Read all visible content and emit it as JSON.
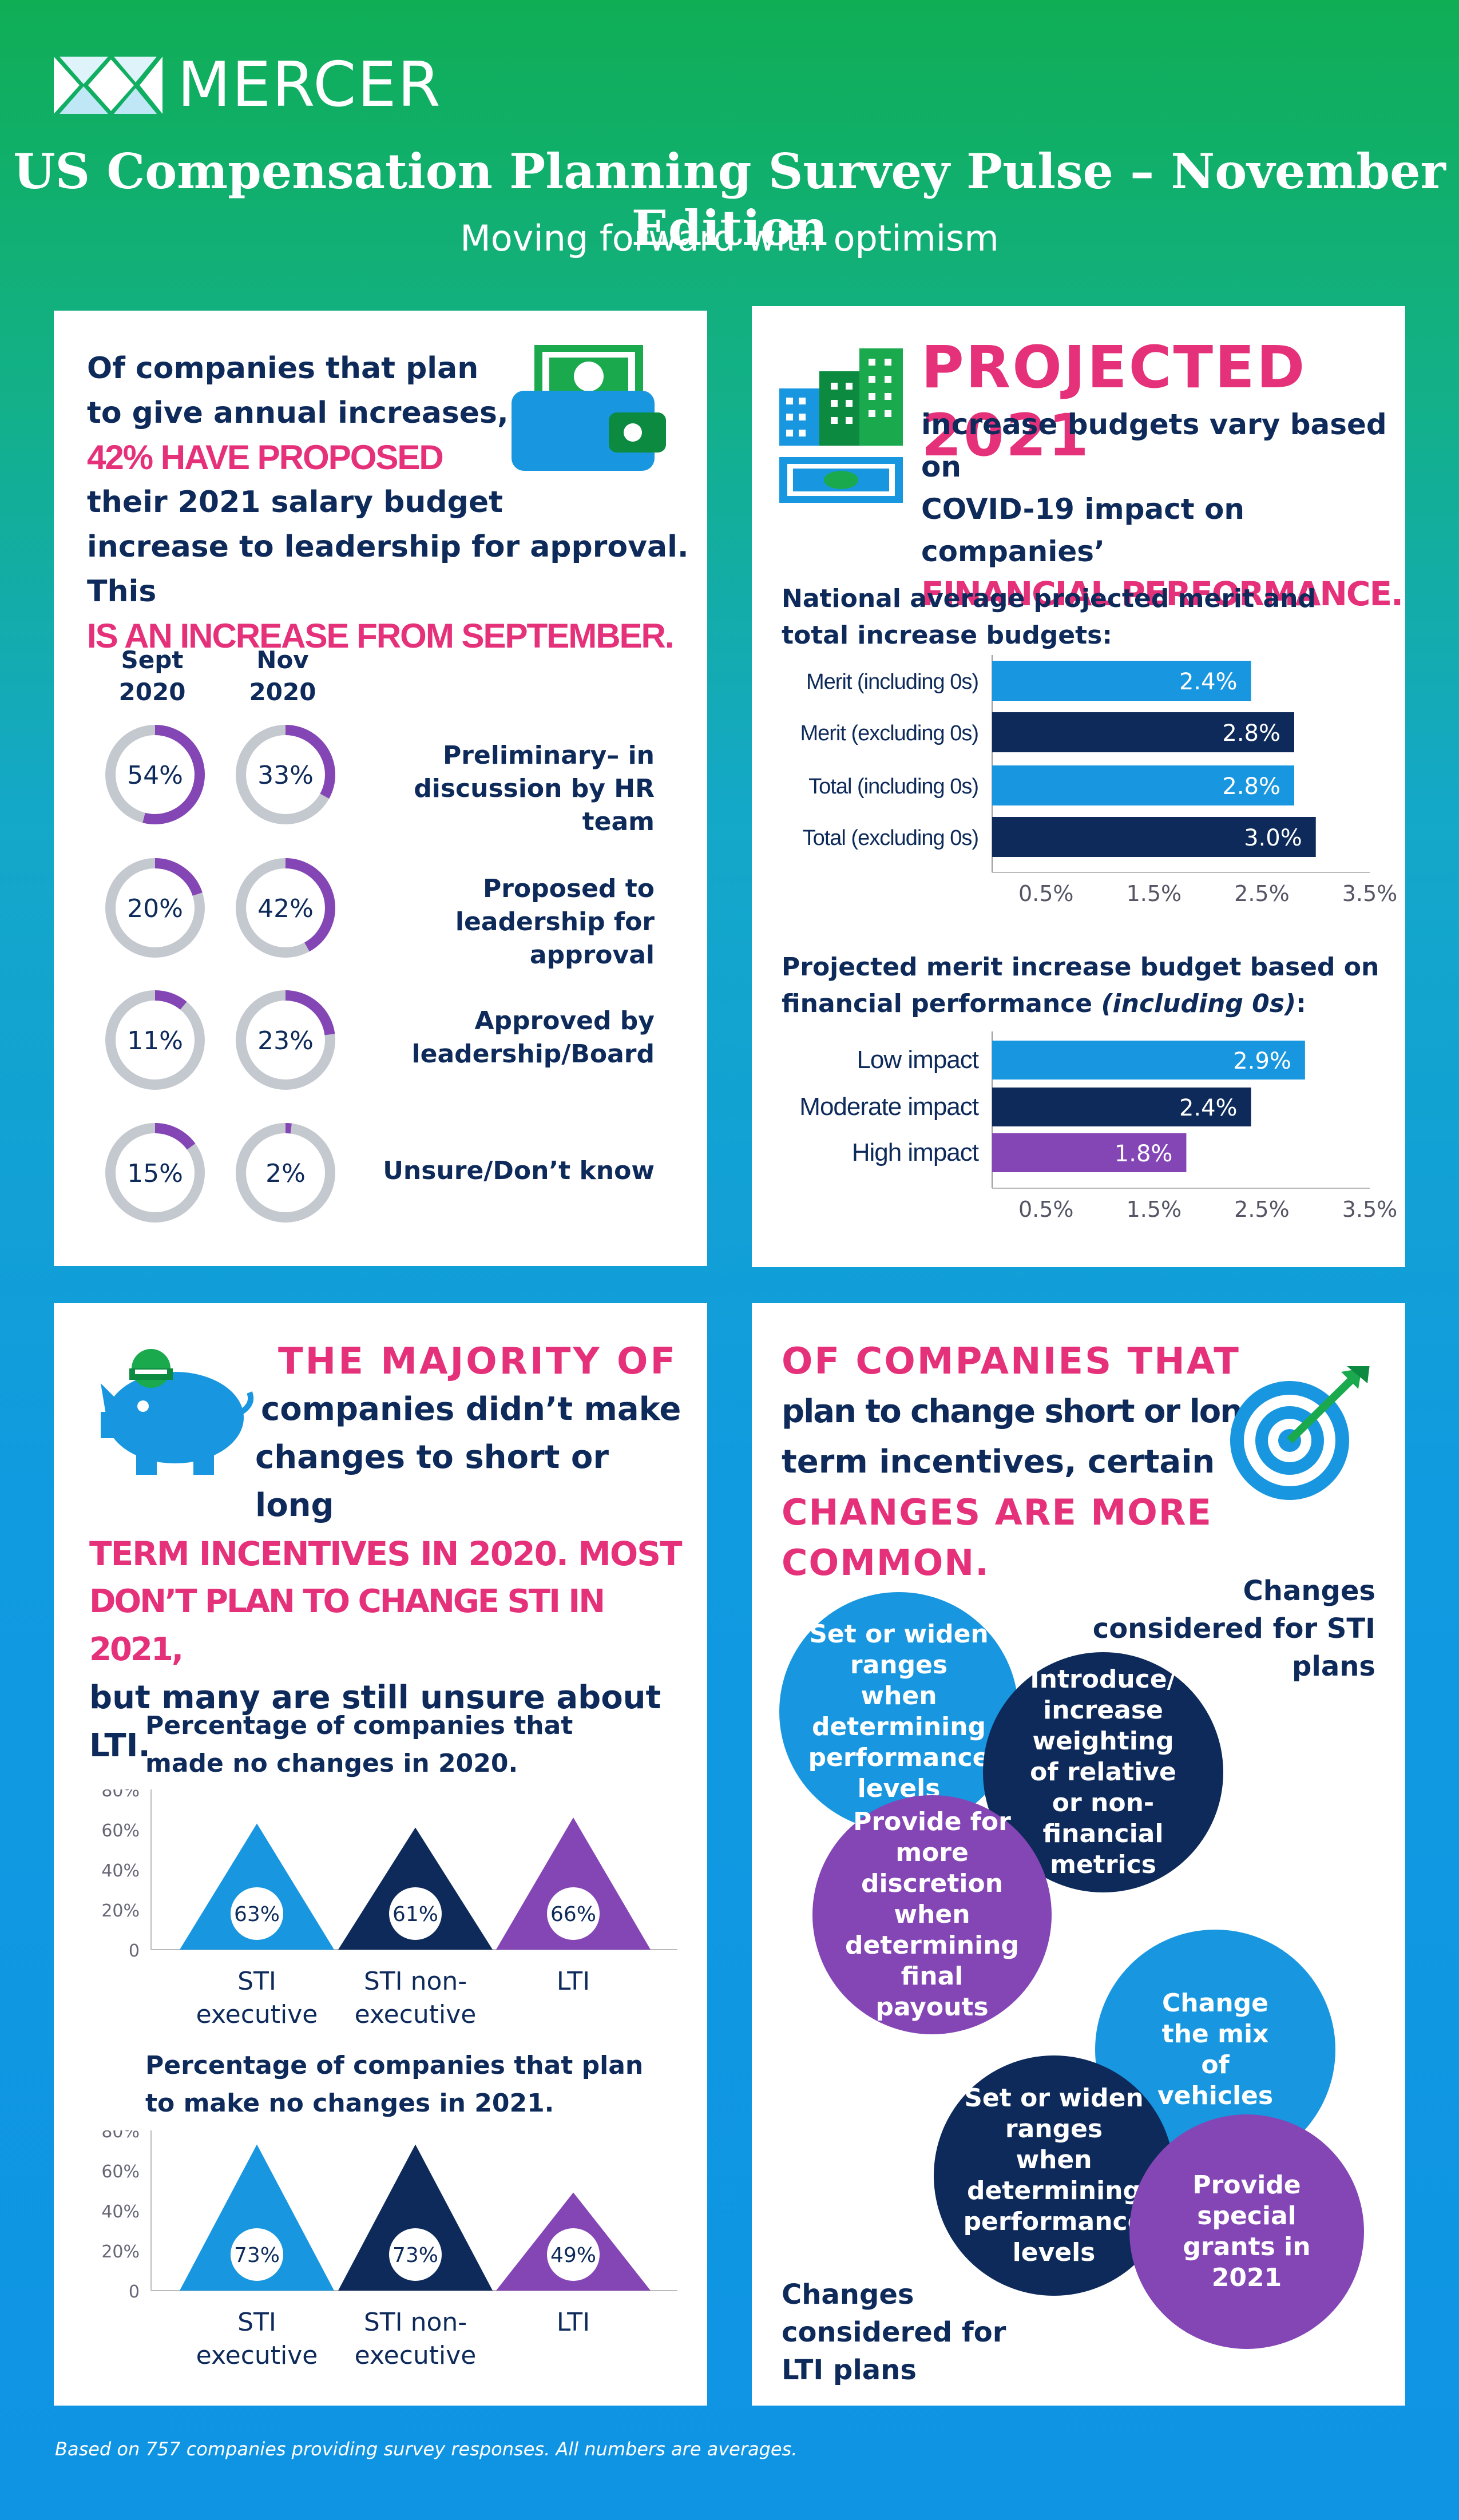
{
  "brand": "MERCER",
  "title": "US Compensation Planning Survey Pulse – November Edition",
  "subtitle": "Moving forward with optimism",
  "colors": {
    "pink": "#e5317a",
    "navy": "#0d2a5a",
    "blue": "#1897e0",
    "purple": "#8445b5",
    "gray": "#c4c8cf",
    "green": "#1aa94d"
  },
  "panel1": {
    "line1": "Of companies that plan",
    "line2": "to give annual increases,",
    "line3": "42% HAVE PROPOSED",
    "line4": "their 2021 salary budget",
    "line5": "increase to leadership for approval. This",
    "line6": "IS AN INCREASE FROM SEPTEMBER.",
    "col_sept": "Sept 2020",
    "col_nov": "Nov 2020"
  },
  "panel2": {
    "title": "PROJECTED 2021",
    "line1": "increase budgets vary based on",
    "line2": "COVID-19 impact on companies’",
    "line3": "FINANCIAL PERFORMANCE.",
    "chart1_title": "National average projected merit and total increase budgets:",
    "chart2_title_a": "Projected merit increase budget based on financial performance",
    "chart2_title_b": "(including 0s)",
    "chart2_title_c": ":"
  },
  "panel3": {
    "h1": "THE MAJORITY OF",
    "h2": "companies didn’t make",
    "h3": "changes to short or long",
    "h4": "TERM INCENTIVES IN 2020. MOST",
    "h5": "DON’T PLAN TO CHANGE STI IN 2021,",
    "h6": "but many are still unsure about LTI.",
    "chart1_title": "Percentage of companies that made no changes in 2020.",
    "chart2_title": "Percentage of companies that plan to make no changes in 2021."
  },
  "panel4": {
    "h1": "OF COMPANIES THAT",
    "h2": "plan to change short or long",
    "h3": "term incentives, certain",
    "h4": "CHANGES ARE MORE COMMON.",
    "sti_label": "Changes considered for STI plans",
    "lti_label": "Changes considered for LTI plans",
    "sti_bubbles": [
      "Set or widen ranges when determining performance levels",
      "Introduce/ increase weighting of relative or non-financial metrics",
      "Provide for more discretion when determining final payouts"
    ],
    "lti_bubbles": [
      "Change the mix of vehicles",
      "Set or widen ranges when determining performance levels",
      "Provide special grants in 2021"
    ]
  },
  "footnote": "Based on 757 companies providing survey responses. All numbers are averages.",
  "chart_data": [
    {
      "type": "donut",
      "title": "",
      "categories": [
        "Preliminary– in discussion by HR team",
        "Proposed to leadership for approval",
        "Approved by leadership/Board",
        "Unsure/Don’t know"
      ],
      "series": [
        {
          "name": "Sept 2020",
          "values": [
            54,
            20,
            11,
            15
          ]
        },
        {
          "name": "Nov 2020",
          "values": [
            33,
            42,
            23,
            2
          ]
        }
      ],
      "unit": "%"
    },
    {
      "type": "bar",
      "orientation": "horizontal",
      "title": "National average projected merit and total increase budgets:",
      "categories": [
        "Merit (including 0s)",
        "Merit (excluding 0s)",
        "Total (including 0s)",
        "Total (excluding 0s)"
      ],
      "values": [
        2.4,
        2.8,
        2.8,
        3.0
      ],
      "value_labels": [
        "2.4%",
        "2.8%",
        "2.8%",
        "3.0%"
      ],
      "bar_colors": [
        "#1897e0",
        "#0d2a5a",
        "#1897e0",
        "#0d2a5a"
      ],
      "ticks": [
        "0.5%",
        "1.5%",
        "2.5%",
        "3.5%"
      ],
      "xlim": [
        0,
        3.5
      ]
    },
    {
      "type": "bar",
      "orientation": "horizontal",
      "title": "Projected merit increase budget based on financial performance (including 0s):",
      "categories": [
        "Low impact",
        "Moderate impact",
        "High impact"
      ],
      "values": [
        2.9,
        2.4,
        1.8
      ],
      "value_labels": [
        "2.9%",
        "2.4%",
        "1.8%"
      ],
      "bar_colors": [
        "#1897e0",
        "#0d2a5a",
        "#8445b5"
      ],
      "ticks": [
        "0.5%",
        "1.5%",
        "2.5%",
        "3.5%"
      ],
      "xlim": [
        0,
        3.5
      ]
    },
    {
      "type": "bar",
      "title": "Percentage of companies that made no changes in 2020.",
      "categories": [
        "STI executive",
        "STI non-executive",
        "LTI"
      ],
      "values": [
        63,
        61,
        66
      ],
      "value_labels": [
        "63%",
        "61%",
        "66%"
      ],
      "bar_colors": [
        "#1897e0",
        "#0d2a5a",
        "#8445b5"
      ],
      "yticks": [
        "80%",
        "60%",
        "40%",
        "20%",
        "0"
      ],
      "ylim": [
        0,
        80
      ]
    },
    {
      "type": "bar",
      "title": "Percentage of companies that plan to make no changes in 2021.",
      "categories": [
        "STI executive",
        "STI non-executive",
        "LTI"
      ],
      "values": [
        73,
        73,
        49
      ],
      "value_labels": [
        "73%",
        "73%",
        "49%"
      ],
      "bar_colors": [
        "#1897e0",
        "#0d2a5a",
        "#8445b5"
      ],
      "yticks": [
        "80%",
        "60%",
        "40%",
        "20%",
        "0"
      ],
      "ylim": [
        0,
        80
      ]
    }
  ]
}
